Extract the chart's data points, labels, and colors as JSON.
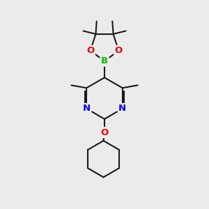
{
  "background_color": "#ebebeb",
  "bond_color": "#1a1a1a",
  "atom_colors": {
    "B": "#00bb00",
    "N": "#0000ee",
    "O": "#ee0000",
    "C": "#1a1a1a"
  },
  "figsize": [
    3.0,
    3.0
  ],
  "dpi": 100
}
